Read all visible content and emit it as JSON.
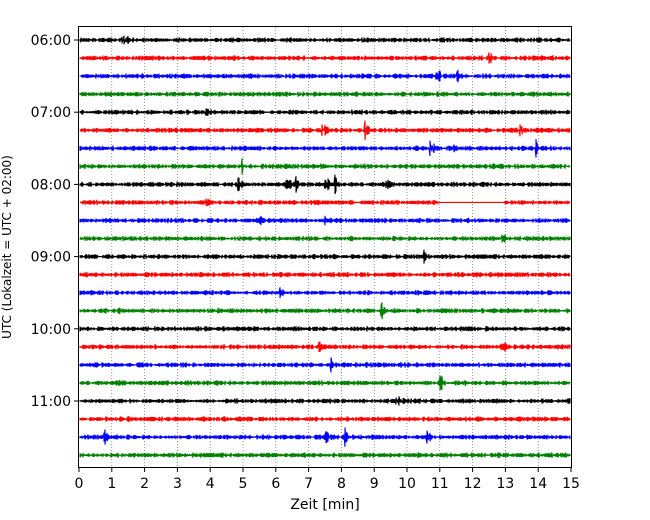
{
  "chart_data": {
    "type": "line",
    "title": "",
    "xlabel": "Zeit  [min]",
    "ylabel": "UTC (Lokalzeit = UTC + 02:00)",
    "xlim": [
      0,
      15
    ],
    "x_ticks": [
      0,
      1,
      2,
      3,
      4,
      5,
      6,
      7,
      8,
      9,
      10,
      11,
      12,
      13,
      14,
      15
    ],
    "x_tick_labels": [
      "0",
      "1",
      "2",
      "3",
      "4",
      "5",
      "6",
      "7",
      "8",
      "9",
      "10",
      "11",
      "12",
      "13",
      "14",
      "15"
    ],
    "y_tick_labels": [
      "06:00",
      "07:00",
      "08:00",
      "09:00",
      "10:00",
      "11:00"
    ],
    "grid": "vertical dotted at each minute",
    "trace_minutes": 15,
    "trace_colors": [
      "#000000",
      "#ff0000",
      "#0000ff",
      "#008000"
    ],
    "traces": [
      {
        "start": "06:00",
        "events": [
          1.35
        ]
      },
      {
        "start": "06:15",
        "events": [
          12.5
        ]
      },
      {
        "start": "06:30",
        "events": [
          10.9,
          11.5
        ]
      },
      {
        "start": "06:45",
        "events": []
      },
      {
        "start": "07:00",
        "events": [
          3.9
        ]
      },
      {
        "start": "07:15",
        "events": [
          7.4,
          8.7,
          13.4
        ]
      },
      {
        "start": "07:30",
        "events": [
          10.7,
          11.4,
          13.9
        ]
      },
      {
        "start": "07:45",
        "events": [
          4.95
        ]
      },
      {
        "start": "08:00",
        "events": [
          4.8,
          6.3,
          6.6,
          7.5,
          7.8,
          9.3
        ]
      },
      {
        "start": "08:15",
        "events": [
          3.8
        ],
        "gap": [
          11.0,
          12.9
        ]
      },
      {
        "start": "08:30",
        "events": [
          5.45,
          7.5
        ]
      },
      {
        "start": "08:45",
        "events": [
          12.85
        ]
      },
      {
        "start": "09:00",
        "events": [
          10.5
        ]
      },
      {
        "start": "09:15",
        "events": []
      },
      {
        "start": "09:30",
        "events": [
          6.1
        ]
      },
      {
        "start": "09:45",
        "events": [
          1.1,
          9.2
        ]
      },
      {
        "start": "10:00",
        "events": []
      },
      {
        "start": "10:15",
        "events": [
          7.3,
          12.9
        ]
      },
      {
        "start": "10:30",
        "events": [
          7.65,
          9.85
        ]
      },
      {
        "start": "10:45",
        "events": [
          11.0
        ]
      },
      {
        "start": "11:00",
        "events": [
          9.7
        ]
      },
      {
        "start": "11:15",
        "events": []
      },
      {
        "start": "11:30",
        "events": [
          0.75,
          7.5,
          8.1,
          10.6
        ]
      },
      {
        "start": "11:45",
        "events": []
      }
    ]
  }
}
